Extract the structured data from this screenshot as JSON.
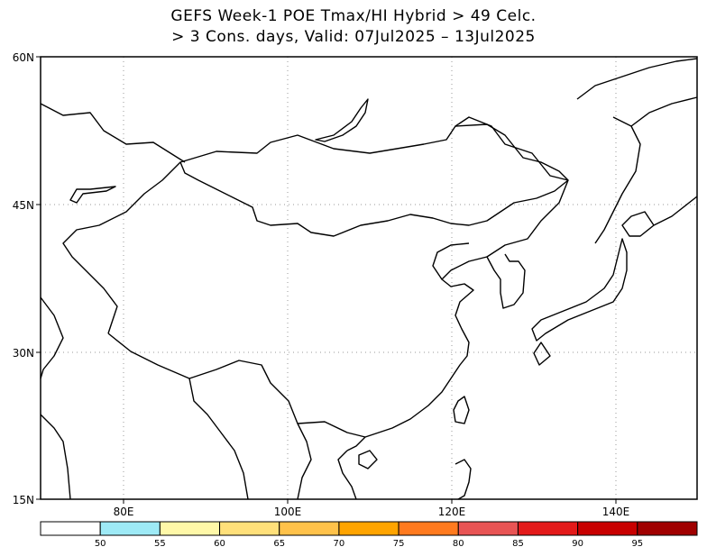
{
  "title": {
    "line1": "GEFS Week-1 POE Tmax/HI Hybrid > 49 Celc.",
    "line2": "> 3 Cons. days, Valid: 07Jul2025 – 13Jul2025"
  },
  "map": {
    "lat_labels": [
      "60N",
      "45N",
      "30N",
      "15N"
    ],
    "lon_labels": [
      "80E",
      "100E",
      "120E",
      "140E"
    ],
    "lat_range": [
      15,
      60
    ],
    "lon_range": [
      70,
      150
    ],
    "grid_lines": "dotted",
    "shaded_values": "none"
  },
  "colorbar": {
    "colors": [
      "#ffffff",
      "#9eeaf6",
      "#fff8a8",
      "#ffe07a",
      "#ffc24a",
      "#ffa400",
      "#ff7a1e",
      "#e85454",
      "#e31a1a",
      "#c80000",
      "#a00000"
    ],
    "tick_labels": [
      "50",
      "55",
      "60",
      "65",
      "70",
      "75",
      "80",
      "85",
      "90",
      "95"
    ]
  }
}
